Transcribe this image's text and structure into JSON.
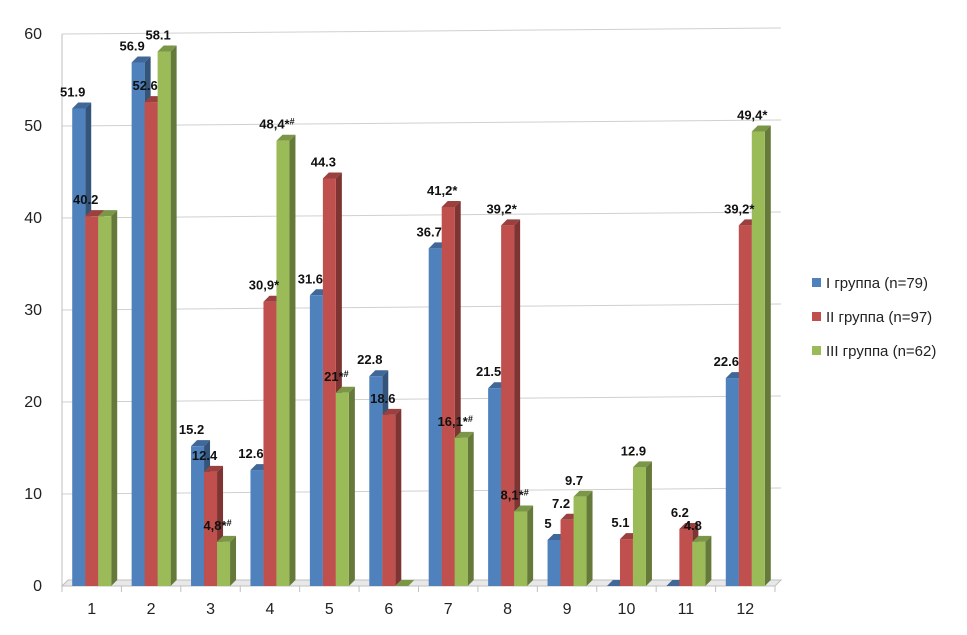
{
  "chart_data": {
    "type": "bar",
    "categories": [
      "1",
      "2",
      "3",
      "4",
      "5",
      "6",
      "7",
      "8",
      "9",
      "10",
      "11",
      "12"
    ],
    "ylim": [
      0,
      60
    ],
    "yticks": [
      "0",
      "10",
      "20",
      "30",
      "40",
      "50",
      "60"
    ],
    "grid": true,
    "legend_position": "right",
    "series": [
      {
        "name": "I группа (n=79)",
        "color": "#4F81BD",
        "values": [
          51.9,
          56.9,
          15.2,
          12.6,
          31.6,
          22.8,
          36.7,
          21.5,
          5,
          0,
          0,
          22.6
        ],
        "labels": [
          "51.9",
          "56.9",
          "15.2",
          "12.6",
          "31.6",
          "22.8",
          "36.7",
          "21.5",
          "5",
          "",
          "",
          "22.6"
        ]
      },
      {
        "name": "II группа (n=97)",
        "color": "#C0504D",
        "values": [
          40.2,
          52.6,
          12.4,
          30.9,
          44.3,
          18.6,
          41.2,
          39.2,
          7.2,
          5.1,
          6.2,
          39.2
        ],
        "labels": [
          "40.2",
          "52.6",
          "12.4",
          "30,9*",
          "44.3",
          "18.6",
          "41,2*",
          "39,2*",
          "7.2",
          "5.1",
          "6.2",
          "39,2*"
        ]
      },
      {
        "name": "III группа (n=62)",
        "color": "#9BBB59",
        "values": [
          40.2,
          58.1,
          4.8,
          48.4,
          21,
          0,
          16.1,
          8.1,
          9.7,
          12.9,
          4.8,
          49.4
        ],
        "labels": [
          "",
          "58.1",
          "4,8*#",
          "48,4*#",
          "21*#",
          "",
          "16,1*#",
          "8,1*#",
          "9.7",
          "12.9",
          "4.8",
          "49,4*"
        ]
      }
    ]
  }
}
